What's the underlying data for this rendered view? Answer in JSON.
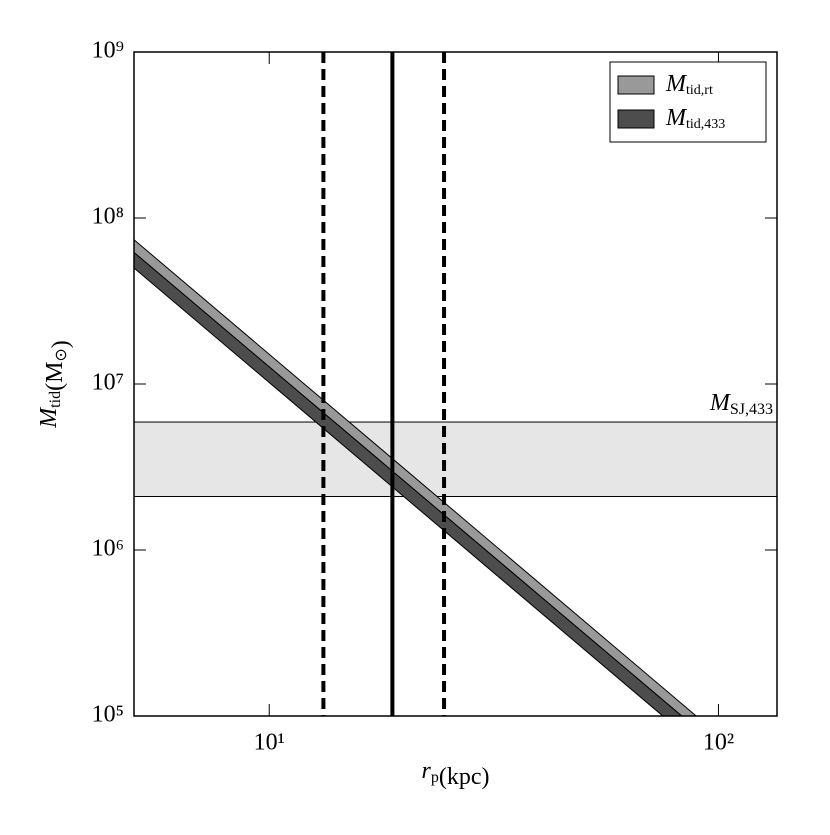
{
  "chart_data": {
    "type": "band",
    "xlabel": [
      {
        "base": "r",
        "sub": "p"
      },
      {
        "base": "(kpc)"
      }
    ],
    "ylabel": [
      {
        "base": "M",
        "sub": "tid"
      },
      {
        "base": "(M",
        "sub": "⊙"
      },
      {
        "base": ")"
      }
    ],
    "xscale": "log",
    "yscale": "log",
    "xlim": [
      5,
      135
    ],
    "ylim": [
      100000,
      1000000000
    ],
    "xticks": [
      {
        "value": 10,
        "label": "10¹"
      },
      {
        "value": 100,
        "label": "10²"
      }
    ],
    "yticks": [
      {
        "value": 100000,
        "label": "10⁵"
      },
      {
        "value": 1000000,
        "label": "10⁶"
      },
      {
        "value": 10000000,
        "label": "10⁷"
      },
      {
        "value": 100000000,
        "label": "10⁸"
      },
      {
        "value": 1000000000,
        "label": "10⁹"
      }
    ],
    "series": [
      {
        "name": {
          "base": "M",
          "sub": "tid,rt"
        },
        "color": "#999999",
        "x": [
          5,
          100
        ],
        "upper": [
          74000000,
          77000
        ],
        "lower": [
          62000000,
          65000
        ]
      },
      {
        "name": {
          "base": "M",
          "sub": "tid,433"
        },
        "color": "#4d4d4d",
        "x": [
          5,
          100
        ],
        "upper": [
          62000000,
          65000
        ],
        "lower": [
          50000000,
          52000
        ]
      }
    ],
    "hband": {
      "label": {
        "base": "M",
        "sub": "SJ,433"
      },
      "lower": 2100000,
      "upper": 5900000,
      "color": "#e6e6e6"
    },
    "vlines": [
      {
        "x": 18.8,
        "style": "solid"
      },
      {
        "x": 13.2,
        "style": "dashed"
      },
      {
        "x": 24.5,
        "style": "dashed"
      }
    ],
    "legend": "upper right"
  }
}
